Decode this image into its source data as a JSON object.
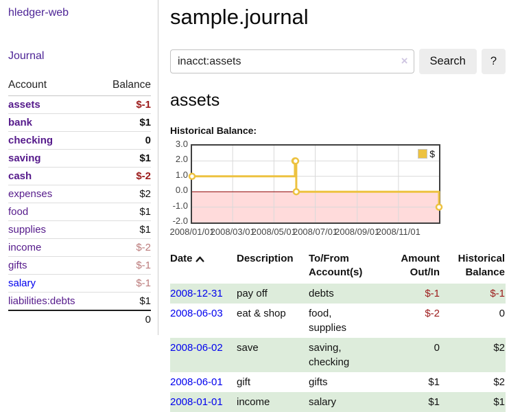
{
  "app": {
    "brand": "hledger-web"
  },
  "sidebar": {
    "nav_journal": "Journal",
    "accounts": {
      "header_account": "Account",
      "header_balance": "Balance",
      "rows": [
        {
          "account": "assets",
          "level": 1,
          "bold": true,
          "balance": "$-1",
          "balance_class": "neg-strong",
          "link_color": "purple"
        },
        {
          "account": "bank",
          "level": 2,
          "bold": true,
          "balance": "$1",
          "balance_class": "",
          "link_color": "purple"
        },
        {
          "account": "checking",
          "level": 3,
          "bold": true,
          "balance": "0",
          "balance_class": "",
          "link_color": "purple"
        },
        {
          "account": "saving",
          "level": 3,
          "bold": true,
          "balance": "$1",
          "balance_class": "",
          "link_color": "purple"
        },
        {
          "account": "cash",
          "level": 2,
          "bold": true,
          "balance": "$-2",
          "balance_class": "neg-strong",
          "link_color": "purple"
        },
        {
          "account": "expenses",
          "level": 1,
          "bold": false,
          "balance": "$2",
          "balance_class": "",
          "link_color": "purple"
        },
        {
          "account": "food",
          "level": 2,
          "bold": false,
          "balance": "$1",
          "balance_class": "",
          "link_color": "purple"
        },
        {
          "account": "supplies",
          "level": 2,
          "bold": false,
          "balance": "$1",
          "balance_class": "",
          "link_color": "purple"
        },
        {
          "account": "income",
          "level": 1,
          "bold": false,
          "balance": "$-2",
          "balance_class": "neg-light",
          "link_color": "purple"
        },
        {
          "account": "gifts",
          "level": 2,
          "bold": false,
          "balance": "$-1",
          "balance_class": "neg-light",
          "link_color": "purple"
        },
        {
          "account": "salary",
          "level": 2,
          "bold": false,
          "balance": "$-1",
          "balance_class": "neg-light",
          "link_color": "blue"
        },
        {
          "account": "liabilities:debts",
          "level": 1,
          "bold": false,
          "balance": "$1",
          "balance_class": "",
          "link_color": "purple"
        }
      ],
      "total": "0"
    }
  },
  "main": {
    "title": "sample.journal",
    "search": {
      "value": "inacct:assets",
      "clear_icon": "×",
      "search_button": "Search",
      "help_button": "?"
    },
    "account_title": "assets",
    "chart_label": "Historical Balance:"
  },
  "chart_data": {
    "type": "line",
    "step": true,
    "title": "Historical Balance",
    "series": [
      {
        "name": "$",
        "points": [
          [
            "2008-01-01",
            1
          ],
          [
            "2008-06-01",
            2
          ],
          [
            "2008-06-02",
            2
          ],
          [
            "2008-06-03",
            0
          ],
          [
            "2008-12-31",
            -1
          ]
        ]
      }
    ],
    "x_range": [
      "2008-01-01",
      "2008-12-31"
    ],
    "x_ticks": [
      "2008/01/01",
      "2008/03/01",
      "2008/05/01",
      "2008/07/01",
      "2008/09/01",
      "2008/11/01"
    ],
    "y_ticks": [
      "3.0",
      "2.0",
      "1.0",
      "0.0",
      "-1.0",
      "-2.0"
    ],
    "ylim": [
      -2,
      3
    ],
    "grid": true,
    "legend_position": "top-right",
    "colors": {
      "line": "#edc240",
      "marker_fill": "#ffffff",
      "negative_fill": "#ffdbdb",
      "zero_line": "#8b0000",
      "grid": "#d9d9d9",
      "border": "#3e3e3e"
    }
  },
  "register": {
    "col_date": "Date",
    "sort_icon": "chevron-up",
    "col_description": "Description",
    "col_accounts": "To/From Account(s)",
    "col_amount": "Amount Out/In",
    "col_balance": "Historical Balance",
    "rows": [
      {
        "date": "2008-12-31",
        "description": "pay off",
        "accounts": "debts",
        "amount": "$-1",
        "amount_class": "neg-strong",
        "balance": "$-1",
        "balance_class": "neg-strong",
        "shaded": true
      },
      {
        "date": "2008-06-03",
        "description": "eat & shop",
        "accounts": "food, supplies",
        "amount": "$-2",
        "amount_class": "neg-strong",
        "balance": "0",
        "balance_class": "",
        "shaded": false
      },
      {
        "date": "2008-06-02",
        "description": "save",
        "accounts": "saving, checking",
        "amount": "0",
        "amount_class": "",
        "balance": "$2",
        "balance_class": "",
        "shaded": true
      },
      {
        "date": "2008-06-01",
        "description": "gift",
        "accounts": "gifts",
        "amount": "$1",
        "amount_class": "",
        "balance": "$2",
        "balance_class": "",
        "shaded": false
      },
      {
        "date": "2008-01-01",
        "description": "income",
        "accounts": "salary",
        "amount": "$1",
        "amount_class": "",
        "balance": "$1",
        "balance_class": "",
        "shaded": true
      }
    ]
  },
  "colors": {
    "link_purple": "#551a8b",
    "link_blue": "#0000ee",
    "negative_strong": "#9b1a1a",
    "negative_light": "#bb7b7b",
    "row_green": "#ddecdb",
    "accent_gold": "#edc240",
    "button_bg": "#ededed"
  }
}
